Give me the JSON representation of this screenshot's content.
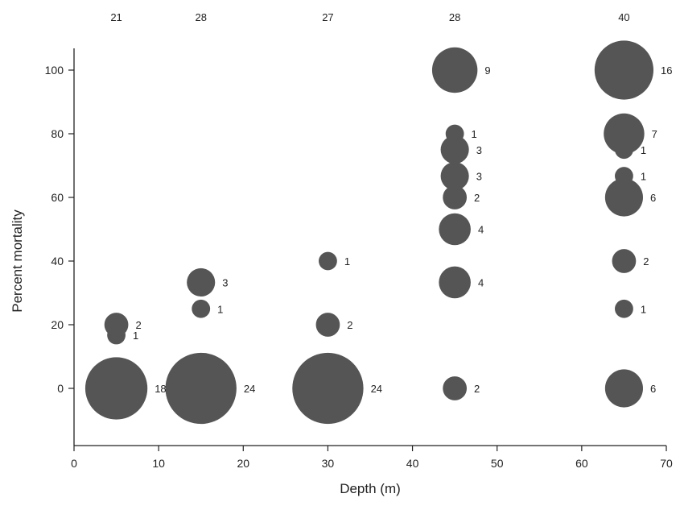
{
  "chart_data": {
    "type": "scatter",
    "xlabel": "Depth (m)",
    "ylabel": "Percent mortality",
    "xlim": [
      0,
      70
    ],
    "ylim": [
      -18,
      108
    ],
    "xticks": [
      0,
      10,
      20,
      30,
      40,
      50,
      60,
      70
    ],
    "yticks": [
      0,
      20,
      40,
      60,
      80,
      100
    ],
    "grid": false,
    "legend": "none",
    "marker_color": "#555555",
    "group_totals": [
      {
        "x": 5,
        "label": "21"
      },
      {
        "x": 15,
        "label": "28"
      },
      {
        "x": 30,
        "label": "27"
      },
      {
        "x": 45,
        "label": "28"
      },
      {
        "x": 65,
        "label": "40"
      }
    ],
    "points": [
      {
        "x": 5,
        "y": 0,
        "n": 18
      },
      {
        "x": 5,
        "y": 16.7,
        "n": 1
      },
      {
        "x": 5,
        "y": 20,
        "n": 2
      },
      {
        "x": 15,
        "y": 0,
        "n": 24
      },
      {
        "x": 15,
        "y": 25,
        "n": 1
      },
      {
        "x": 15,
        "y": 33.3,
        "n": 3
      },
      {
        "x": 30,
        "y": 0,
        "n": 24
      },
      {
        "x": 30,
        "y": 20,
        "n": 2
      },
      {
        "x": 30,
        "y": 40,
        "n": 1
      },
      {
        "x": 45,
        "y": 0,
        "n": 2
      },
      {
        "x": 45,
        "y": 33.3,
        "n": 4
      },
      {
        "x": 45,
        "y": 50,
        "n": 4
      },
      {
        "x": 45,
        "y": 60,
        "n": 2
      },
      {
        "x": 45,
        "y": 66.7,
        "n": 3
      },
      {
        "x": 45,
        "y": 75,
        "n": 3
      },
      {
        "x": 45,
        "y": 80,
        "n": 1
      },
      {
        "x": 45,
        "y": 100,
        "n": 9
      },
      {
        "x": 65,
        "y": 0,
        "n": 6
      },
      {
        "x": 65,
        "y": 25,
        "n": 1
      },
      {
        "x": 65,
        "y": 40,
        "n": 2
      },
      {
        "x": 65,
        "y": 60,
        "n": 6
      },
      {
        "x": 65,
        "y": 66.7,
        "n": 1
      },
      {
        "x": 65,
        "y": 75,
        "n": 1
      },
      {
        "x": 65,
        "y": 80,
        "n": 7
      },
      {
        "x": 65,
        "y": 100,
        "n": 16
      }
    ]
  }
}
